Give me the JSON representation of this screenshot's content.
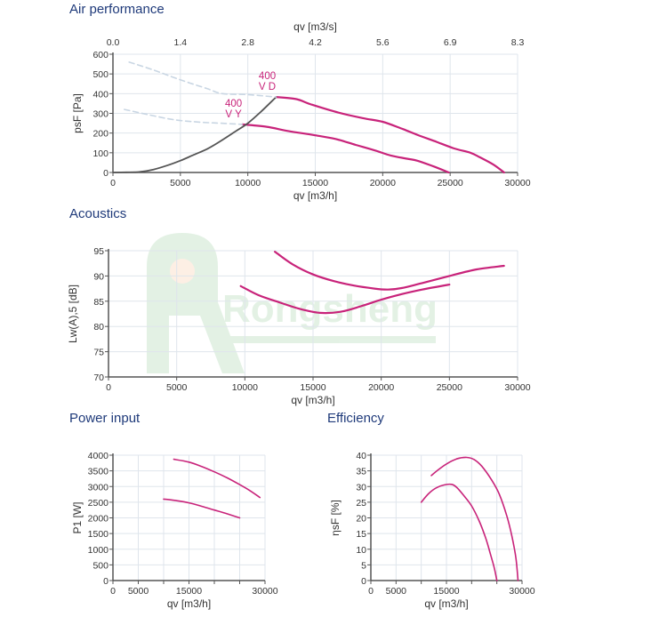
{
  "sections": {
    "air_title": "Air performance",
    "acoustics_title": "Acoustics",
    "power_title": "Power input",
    "efficiency_title": "Efficiency"
  },
  "colors": {
    "curve": "#c8237a",
    "system_curve": "#555555",
    "dashed": "#c9d6e3",
    "grid": "#dfe5ec",
    "axis": "#555555",
    "title": "#1f3a7a",
    "watermark": "#2e9d3a"
  },
  "watermark": {
    "text": "Rongsheng"
  },
  "chart_data": [
    {
      "id": "air",
      "type": "line",
      "title": "Air performance",
      "xlabel": "qv [m3/h]",
      "ylabel": "psF [Pa]",
      "x2label": "qv [m3/s]",
      "xlim": [
        0,
        30000
      ],
      "ylim": [
        0,
        600
      ],
      "xticks": [
        0,
        5000,
        10000,
        15000,
        20000,
        25000,
        30000
      ],
      "yticks": [
        0,
        100,
        200,
        300,
        400,
        500,
        600
      ],
      "x2ticks": [
        "0.0",
        "1.4",
        "2.8",
        "4.2",
        "5.6",
        "6.9",
        "8.3"
      ],
      "grid": true,
      "series": [
        {
          "name": "400 V D",
          "label_lines": [
            "400",
            "V D"
          ],
          "style": "solid",
          "x": [
            12100,
            13600,
            14700,
            16700,
            18500,
            20000,
            21500,
            22600,
            24000,
            25300,
            26500,
            27200,
            28200,
            29000
          ],
          "y": [
            383,
            372,
            345,
            304,
            276,
            257,
            220,
            190,
            155,
            122,
            100,
            77,
            40,
            0
          ]
        },
        {
          "name": "400 V Y",
          "label_lines": [
            "400",
            "V Y"
          ],
          "style": "solid",
          "x": [
            9600,
            11400,
            13000,
            14900,
            16500,
            18000,
            19500,
            20600,
            21800,
            22600,
            23800,
            24900
          ],
          "y": [
            244,
            232,
            210,
            190,
            170,
            140,
            110,
            86,
            70,
            59,
            30,
            0
          ]
        },
        {
          "name": "system",
          "style": "system",
          "x": [
            0,
            1000,
            2000,
            3000,
            4000,
            5000,
            6000,
            7000,
            8000,
            9000,
            10000,
            11000,
            12100
          ],
          "y": [
            0,
            1,
            3,
            15,
            35,
            60,
            90,
            120,
            160,
            205,
            250,
            310,
            383
          ]
        },
        {
          "name": "VD dashed",
          "style": "dashed",
          "x": [
            1200,
            3000,
            5000,
            7000,
            8100,
            10000,
            12100
          ],
          "y": [
            560,
            520,
            470,
            425,
            400,
            395,
            383
          ]
        },
        {
          "name": "VY dashed",
          "style": "dashed",
          "x": [
            850,
            2500,
            4500,
            6500,
            8000,
            9600
          ],
          "y": [
            320,
            295,
            268,
            255,
            250,
            244
          ]
        }
      ]
    },
    {
      "id": "acoustics",
      "type": "line",
      "title": "Acoustics",
      "xlabel": "qv [m3/h]",
      "ylabel": "Lw(A),5 [dB]",
      "xlim": [
        0,
        30000
      ],
      "ylim": [
        70,
        95
      ],
      "xticks": [
        0,
        5000,
        10000,
        15000,
        20000,
        25000,
        30000
      ],
      "yticks": [
        70,
        75,
        80,
        85,
        90,
        95
      ],
      "grid": true,
      "series": [
        {
          "name": "400 V D",
          "x": [
            12200,
            13500,
            15000,
            16500,
            18000,
            19500,
            20500,
            21500,
            23000,
            25000,
            27000,
            29000
          ],
          "y": [
            94.8,
            92.3,
            90.3,
            89.0,
            88.1,
            87.5,
            87.3,
            87.6,
            88.6,
            90.0,
            91.3,
            92.0
          ]
        },
        {
          "name": "400 V Y",
          "x": [
            9700,
            11000,
            12500,
            14000,
            15500,
            17000,
            18500,
            20000,
            21500,
            23000,
            25000
          ],
          "y": [
            88.0,
            86.2,
            84.8,
            83.5,
            82.7,
            82.9,
            84.0,
            85.3,
            86.4,
            87.3,
            88.3
          ]
        }
      ]
    },
    {
      "id": "power",
      "type": "line",
      "title": "Power input",
      "xlabel": "qv [m3/h]",
      "ylabel": "P1 [W]",
      "xlim": [
        0,
        30000
      ],
      "ylim": [
        0,
        4000
      ],
      "xticks": [
        0,
        5000,
        10000,
        15000,
        20000,
        25000,
        30000
      ],
      "xticklabels": [
        "0",
        "5000",
        "",
        "15000",
        "",
        "",
        "30000"
      ],
      "yticks": [
        0,
        500,
        1000,
        1500,
        2000,
        2500,
        3000,
        3500,
        4000
      ],
      "grid": true,
      "series": [
        {
          "name": "400 V D",
          "x": [
            12000,
            15000,
            17500,
            20000,
            22500,
            25000,
            27000,
            29000
          ],
          "y": [
            3870,
            3780,
            3640,
            3470,
            3280,
            3060,
            2870,
            2650
          ]
        },
        {
          "name": "400 V Y",
          "x": [
            10000,
            12500,
            15000,
            17500,
            20000,
            22500,
            25000
          ],
          "y": [
            2600,
            2550,
            2480,
            2370,
            2250,
            2130,
            2000
          ]
        }
      ]
    },
    {
      "id": "efficiency",
      "type": "line",
      "title": "Efficiency",
      "xlabel": "qv [m3/h]",
      "ylabel": "ηsF [%]",
      "xlim": [
        0,
        30000
      ],
      "ylim": [
        0,
        40
      ],
      "xticks": [
        0,
        5000,
        10000,
        15000,
        20000,
        25000,
        30000
      ],
      "xticklabels": [
        "0",
        "5000",
        "",
        "15000",
        "",
        "",
        "30000"
      ],
      "yticks": [
        0,
        5,
        10,
        15,
        20,
        25,
        30,
        35,
        40
      ],
      "grid": true,
      "series": [
        {
          "name": "400 V D",
          "x": [
            12000,
            13500,
            15000,
            17000,
            19000,
            20500,
            22000,
            24000,
            25500,
            27000,
            28000,
            28800,
            29200
          ],
          "y": [
            33.5,
            35.5,
            37.2,
            38.8,
            39.3,
            38.6,
            36.5,
            32.0,
            27.5,
            20.5,
            14.0,
            7.0,
            0
          ]
        },
        {
          "name": "400 V Y",
          "x": [
            10000,
            11500,
            13000,
            14500,
            16000,
            17000,
            18500,
            20000,
            21500,
            22800,
            23800,
            24500,
            25000
          ],
          "y": [
            25.0,
            27.8,
            29.6,
            30.5,
            30.7,
            29.8,
            27.0,
            23.8,
            19.0,
            13.5,
            8.0,
            4.0,
            0
          ]
        }
      ]
    }
  ]
}
